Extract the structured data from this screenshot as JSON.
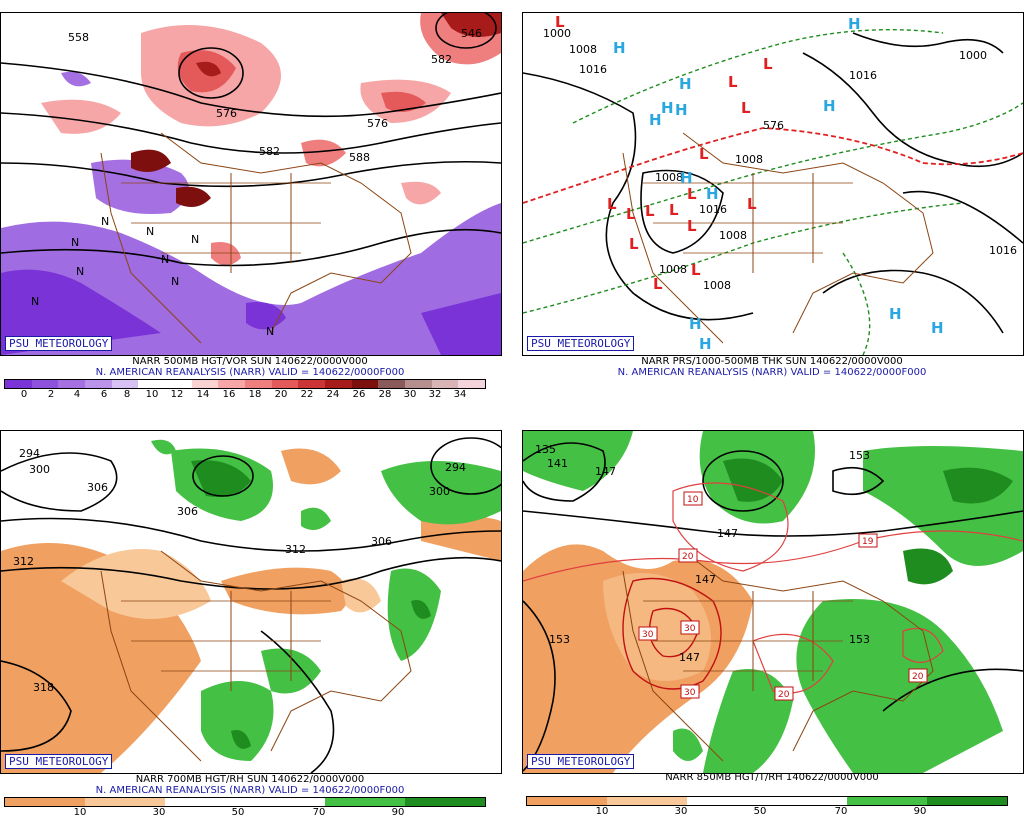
{
  "panels": [
    {
      "badge": "PSU METEOROLOGY",
      "caption1": "NARR 500MB HGT/VOR SUN 140622/0000V000",
      "caption2": "N. AMERICAN REANALYSIS (NARR) VALID = 140622/0000F000",
      "ticks": [
        "0",
        "2",
        "4",
        "6",
        "8",
        "10",
        "12",
        "14",
        "16",
        "18",
        "20",
        "22",
        "24",
        "26",
        "28",
        "30",
        "32",
        "34"
      ],
      "colors": [
        "#7a33d6",
        "#8f52dc",
        "#a570e2",
        "#bc93ea",
        "#d7c0f3",
        "#ffffff",
        "#ffffff",
        "#fbd2d2",
        "#f6a6a6",
        "#ef7f7f",
        "#e45a5a",
        "#cc3535",
        "#a81b1b",
        "#7d0f0f",
        "#8a5a5a",
        "#b58e8e",
        "#d9b4b4",
        "#f4d4dc"
      ],
      "contour_labels": [
        "558",
        "576",
        "582",
        "576",
        "546",
        "582",
        "588"
      ],
      "n_marks": [
        "N",
        "N",
        "N",
        "N",
        "N",
        "N",
        "N",
        "N",
        "N"
      ]
    },
    {
      "badge": "PSU METEOROLOGY",
      "caption1": "NARR PRS/1000-500MB THK SUN 140622/0000V000",
      "caption2": "N. AMERICAN REANALYSIS (NARR) VALID = 140622/0000F000",
      "pressure_labels": [
        "1000",
        "1008",
        "1016",
        "1016",
        "1016",
        "1000",
        "1008",
        "1008",
        "1008",
        "1008",
        "1016",
        "1008",
        "576"
      ],
      "highs": [
        "H",
        "H",
        "H",
        "H",
        "H",
        "H",
        "H",
        "H",
        "H",
        "H",
        "H",
        "H",
        "H"
      ],
      "lows": [
        "L",
        "L",
        "L",
        "L",
        "L",
        "L",
        "L",
        "L",
        "L",
        "L",
        "L",
        "L",
        "L",
        "L",
        "L"
      ]
    },
    {
      "badge": "PSU METEOROLOGY",
      "caption1": "NARR 700MB HGT/RH SUN 140622/0000V000",
      "caption2": "N. AMERICAN REANALYSIS (NARR) VALID = 140622/0000F000",
      "ticks": [
        "10",
        "30",
        "50",
        "70",
        "90"
      ],
      "colors": [
        "#f0a060",
        "#f8c898",
        "#ffffff",
        "#ffffff",
        "#44c044",
        "#1e8c1e"
      ],
      "contour_labels": [
        "294",
        "300",
        "306",
        "306",
        "312",
        "312",
        "306",
        "300",
        "294",
        "318"
      ]
    },
    {
      "badge": "PSU METEOROLOGY",
      "caption1": "NARR 850MB HGT/T/RH 140622/0000V000",
      "ticks": [
        "10",
        "30",
        "50",
        "70",
        "90"
      ],
      "colors": [
        "#f0a060",
        "#f8c898",
        "#ffffff",
        "#ffffff",
        "#44c044",
        "#1e8c1e"
      ],
      "contour_labels": [
        "135",
        "141",
        "147",
        "147",
        "147",
        "153",
        "153",
        "147",
        "153"
      ],
      "temp_labels": [
        "10",
        "19",
        "20",
        "30",
        "30",
        "30",
        "20",
        "20"
      ]
    }
  ]
}
